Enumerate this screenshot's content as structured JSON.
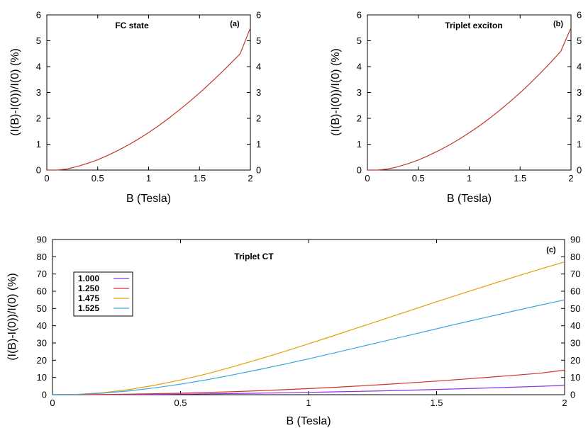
{
  "chart_data": [
    {
      "type": "line",
      "panel_label": "(a)",
      "title": "FC state",
      "xlabel": "B (Tesla)",
      "ylabel": "(I(B)-I(0))/I(0) (%)",
      "xlim": [
        0,
        2
      ],
      "ylim": [
        0,
        6
      ],
      "xticks": [
        "0",
        "0.5",
        "1",
        "1.5",
        "2"
      ],
      "yticks": [
        "0",
        "1",
        "2",
        "3",
        "4",
        "5",
        "6"
      ],
      "right_axis_ticks": true,
      "series": [
        {
          "color": "#c0392b",
          "x": [
            0,
            0.1,
            0.2,
            0.3,
            0.4,
            0.5,
            0.6,
            0.7,
            0.8,
            0.9,
            1.0,
            1.1,
            1.2,
            1.3,
            1.4,
            1.5,
            1.6,
            1.7,
            1.8,
            1.9,
            2.0
          ],
          "y": [
            0,
            0.0,
            0.04,
            0.14,
            0.26,
            0.4,
            0.57,
            0.76,
            0.97,
            1.2,
            1.45,
            1.72,
            2.01,
            2.32,
            2.64,
            2.98,
            3.34,
            3.71,
            4.1,
            4.5,
            5.5
          ]
        }
      ]
    },
    {
      "type": "line",
      "panel_label": "(b)",
      "title": "Triplet exciton",
      "xlabel": "B (Tesla)",
      "ylabel": "(I(B)-I(0))/I(0) (%)",
      "xlim": [
        0,
        2
      ],
      "ylim": [
        0,
        6
      ],
      "xticks": [
        "0",
        "0.5",
        "1",
        "1.5",
        "2"
      ],
      "yticks": [
        "0",
        "1",
        "2",
        "3",
        "4",
        "5",
        "6"
      ],
      "right_axis_ticks": true,
      "series": [
        {
          "color": "#c0392b",
          "x": [
            0,
            0.1,
            0.2,
            0.3,
            0.4,
            0.5,
            0.6,
            0.7,
            0.8,
            0.9,
            1.0,
            1.1,
            1.2,
            1.3,
            1.4,
            1.5,
            1.6,
            1.7,
            1.8,
            1.9,
            2.0
          ],
          "y": [
            0,
            0.0,
            0.04,
            0.13,
            0.25,
            0.39,
            0.56,
            0.75,
            0.96,
            1.19,
            1.44,
            1.71,
            2.0,
            2.31,
            2.64,
            2.99,
            3.36,
            3.75,
            4.16,
            4.59,
            5.5
          ]
        }
      ]
    },
    {
      "type": "line",
      "panel_label": "(c)",
      "title": "Triplet CT",
      "xlabel": "B (Tesla)",
      "ylabel": "(I(B)-I(0))/I(0) (%)",
      "xlim": [
        0,
        2
      ],
      "ylim": [
        0,
        90
      ],
      "xticks": [
        "0",
        "0.5",
        "1",
        "1.5",
        "2"
      ],
      "yticks": [
        "0",
        "10",
        "20",
        "30",
        "40",
        "50",
        "60",
        "70",
        "80",
        "90"
      ],
      "right_axis_ticks": true,
      "legend_position": "left",
      "series": [
        {
          "name": "1.000",
          "color": "#8e2de2",
          "x": [
            0,
            0.1,
            0.2,
            0.3,
            0.4,
            0.5,
            0.6,
            0.7,
            0.8,
            0.9,
            1.0,
            1.1,
            1.2,
            1.3,
            1.4,
            1.5,
            1.6,
            1.7,
            1.8,
            1.9,
            2.0
          ],
          "y": [
            0,
            0.0,
            0.05,
            0.12,
            0.22,
            0.34,
            0.49,
            0.67,
            0.87,
            1.1,
            1.35,
            1.63,
            1.94,
            2.28,
            2.64,
            3.03,
            3.45,
            3.89,
            4.36,
            4.86,
            5.4
          ]
        },
        {
          "name": "1.250",
          "color": "#d03030",
          "x": [
            0,
            0.1,
            0.2,
            0.3,
            0.4,
            0.5,
            0.6,
            0.7,
            0.8,
            0.9,
            1.0,
            1.1,
            1.2,
            1.3,
            1.4,
            1.5,
            1.6,
            1.7,
            1.8,
            1.9,
            2.0
          ],
          "y": [
            0,
            0.0,
            0.14,
            0.32,
            0.57,
            0.89,
            1.28,
            1.74,
            2.27,
            2.87,
            3.55,
            4.29,
            5.1,
            5.97,
            6.9,
            7.9,
            8.95,
            10.06,
            11.2,
            12.4,
            14.2
          ]
        },
        {
          "name": "1.475",
          "color": "#e0a000",
          "x": [
            0,
            0.1,
            0.2,
            0.3,
            0.4,
            0.5,
            0.6,
            0.7,
            0.8,
            0.9,
            1.0,
            1.1,
            1.2,
            1.3,
            1.4,
            1.5,
            1.6,
            1.7,
            1.8,
            1.9,
            2.0
          ],
          "y": [
            0,
            0.2,
            1.2,
            3.0,
            5.5,
            8.5,
            12.0,
            16.0,
            20.3,
            24.8,
            29.5,
            34.3,
            39.2,
            44.1,
            49.0,
            53.9,
            58.7,
            63.4,
            68.1,
            72.6,
            77.0
          ]
        },
        {
          "name": "1.525",
          "color": "#3aa6dd",
          "x": [
            0,
            0.1,
            0.2,
            0.3,
            0.4,
            0.5,
            0.6,
            0.7,
            0.8,
            0.9,
            1.0,
            1.1,
            1.2,
            1.3,
            1.4,
            1.5,
            1.6,
            1.7,
            1.8,
            1.9,
            2.0
          ],
          "y": [
            0,
            0.15,
            0.9,
            2.2,
            4.0,
            6.1,
            8.6,
            11.4,
            14.4,
            17.5,
            20.8,
            24.2,
            27.7,
            31.2,
            34.7,
            38.2,
            41.7,
            45.1,
            48.5,
            51.8,
            55.0
          ]
        }
      ]
    }
  ]
}
